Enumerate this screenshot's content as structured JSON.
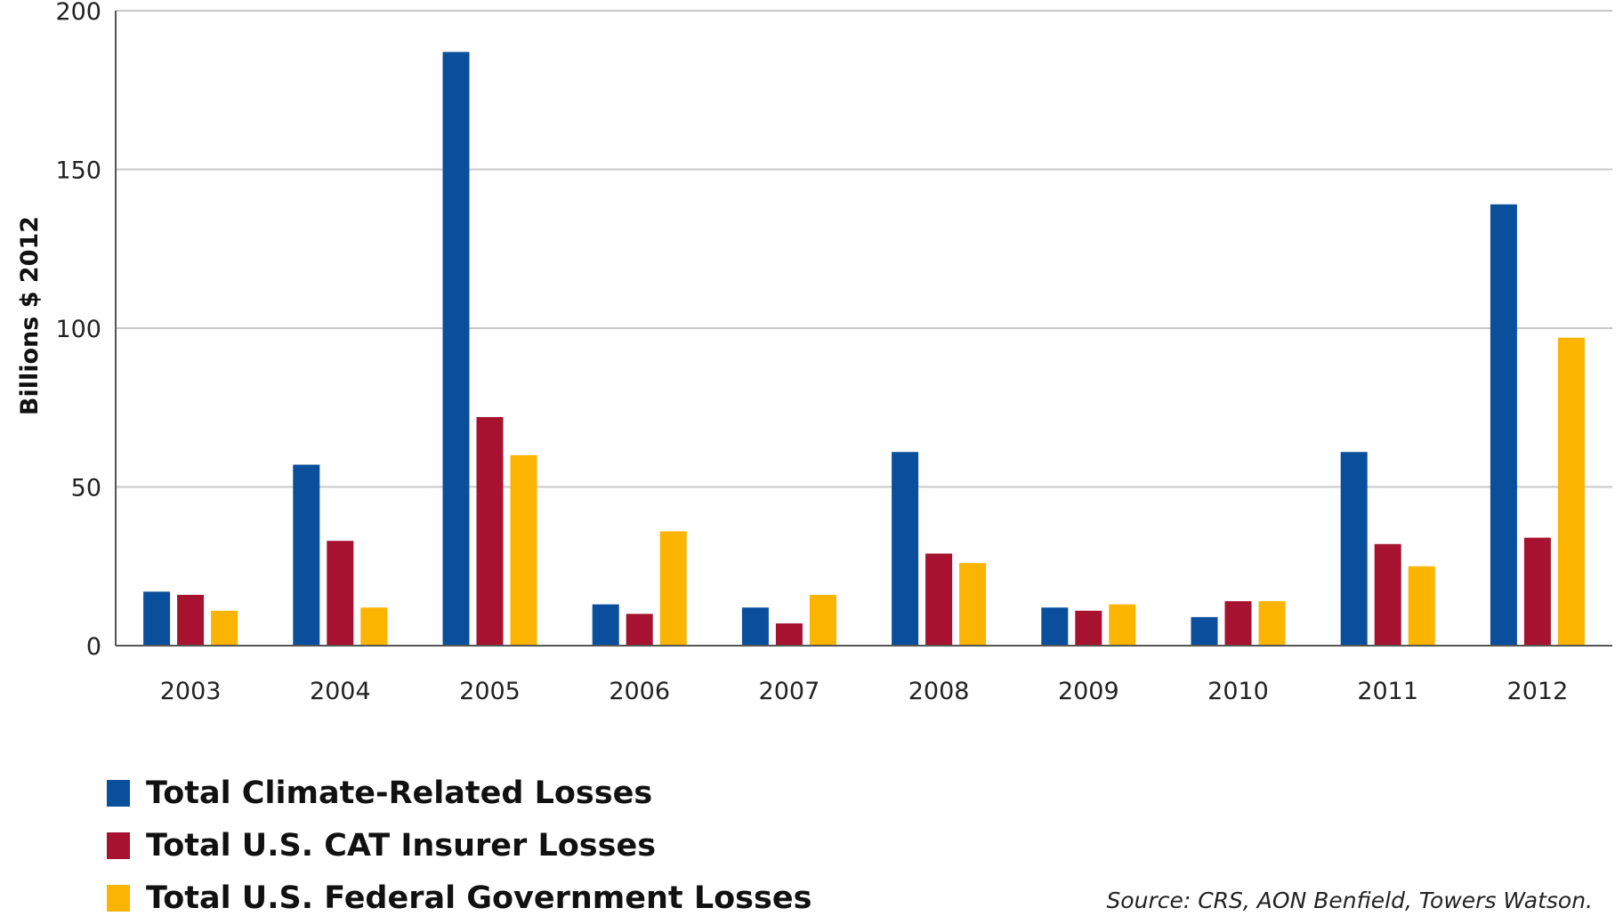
{
  "chart_data": {
    "type": "bar",
    "ylabel": "Billions $ 2012",
    "xlabel": "",
    "ylim": [
      0,
      200
    ],
    "yticks": [
      0,
      50,
      100,
      150,
      200
    ],
    "grid": true,
    "legend_position": "bottom-left",
    "categories": [
      "2003",
      "2004",
      "2005",
      "2006",
      "2007",
      "2008",
      "2009",
      "2010",
      "2011",
      "2012"
    ],
    "series": [
      {
        "name": "Total Climate-Related Losses",
        "color": "#0a4f9c",
        "values": [
          17,
          57,
          187,
          13,
          12,
          61,
          12,
          9,
          61,
          139
        ]
      },
      {
        "name": "Total U.S. CAT Insurer Losses",
        "color": "#a6122f",
        "values": [
          16,
          33,
          72,
          10,
          7,
          29,
          11,
          14,
          32,
          34
        ]
      },
      {
        "name": "Total U.S. Federal Government Losses",
        "color": "#fbb400",
        "values": [
          11,
          12,
          60,
          36,
          16,
          26,
          13,
          14,
          25,
          97
        ]
      }
    ],
    "source": "Source: CRS, AON Benfield, Towers Watson."
  }
}
